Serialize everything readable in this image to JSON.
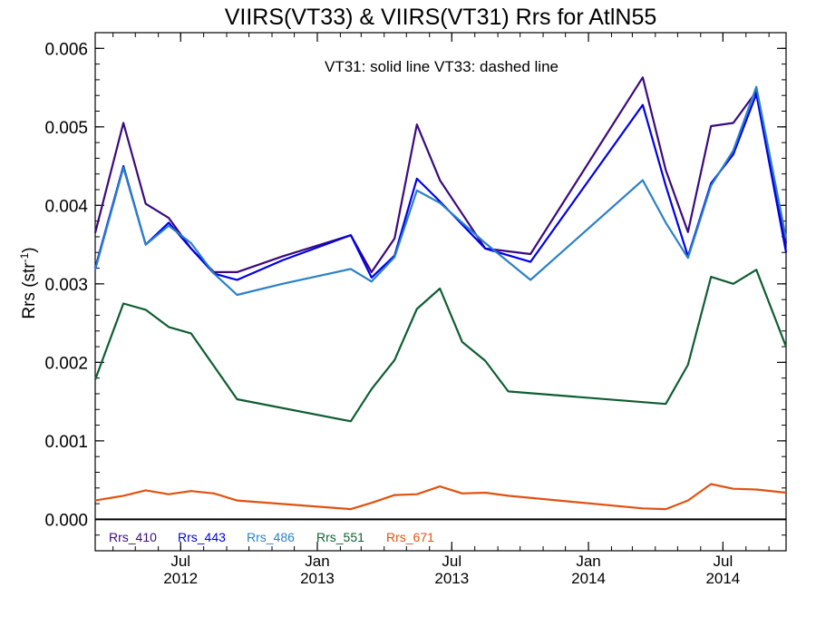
{
  "chart_data": {
    "type": "line",
    "title": "VIIRS(VT33) & VIIRS(VT31)  Rrs for AtlN55",
    "ylabel": "Rrs (str",
    "ylabel_sup": "-1",
    "ylabel_close": ")",
    "annotation": "VT31: solid line   VT33: dashed line",
    "ylim": [
      -0.0004,
      0.0062
    ],
    "xlim": [
      "2012-03-08",
      "2014-09-24"
    ],
    "yticks": [
      {
        "value": 0.0,
        "label": "0.000"
      },
      {
        "value": 0.001,
        "label": "0.001"
      },
      {
        "value": 0.002,
        "label": "0.002"
      },
      {
        "value": 0.003,
        "label": "0.003"
      },
      {
        "value": 0.004,
        "label": "0.004"
      },
      {
        "value": 0.005,
        "label": "0.005"
      },
      {
        "value": 0.006,
        "label": "0.006"
      }
    ],
    "xticks": [
      {
        "date": "2012-07-01",
        "month": "Jul",
        "year": "2012"
      },
      {
        "date": "2013-01-01",
        "month": "Jan",
        "year": "2013"
      },
      {
        "date": "2013-07-01",
        "month": "Jul",
        "year": "2013"
      },
      {
        "date": "2014-01-01",
        "month": "Jan",
        "year": "2014"
      },
      {
        "date": "2014-07-01",
        "month": "Jul",
        "year": "2014"
      }
    ],
    "zero_line": true,
    "grid": false,
    "legend_position": "bottom-left",
    "series": [
      {
        "name": "Rrs_410",
        "color": "#3a0a7e",
        "points": [
          [
            "2012-03-08",
            0.00365
          ],
          [
            "2012-04-15",
            0.00505
          ],
          [
            "2012-05-15",
            0.00402
          ],
          [
            "2012-06-15",
            0.00384
          ],
          [
            "2012-07-15",
            0.00345
          ],
          [
            "2012-08-15",
            0.00315
          ],
          [
            "2012-09-15",
            0.00315
          ],
          [
            "2012-11-15",
            0.00335
          ],
          [
            "2013-02-15",
            0.00362
          ],
          [
            "2013-03-15",
            0.00315
          ],
          [
            "2013-04-15",
            0.00358
          ],
          [
            "2013-05-15",
            0.00503
          ],
          [
            "2013-06-15",
            0.00432
          ],
          [
            "2013-08-15",
            0.00345
          ],
          [
            "2013-10-15",
            0.00338
          ],
          [
            "2014-03-15",
            0.00563
          ],
          [
            "2014-04-15",
            0.00445
          ],
          [
            "2014-05-15",
            0.00366
          ],
          [
            "2014-06-15",
            0.00501
          ],
          [
            "2014-07-15",
            0.00505
          ],
          [
            "2014-08-15",
            0.00545
          ],
          [
            "2014-09-24",
            0.00352
          ]
        ]
      },
      {
        "name": "Rrs_443",
        "color": "#0000e6",
        "points": [
          [
            "2012-03-08",
            0.0032
          ],
          [
            "2012-04-15",
            0.0045
          ],
          [
            "2012-05-15",
            0.0035
          ],
          [
            "2012-06-15",
            0.00378
          ],
          [
            "2012-07-15",
            0.00345
          ],
          [
            "2012-08-15",
            0.00313
          ],
          [
            "2012-09-15",
            0.00305
          ],
          [
            "2012-11-15",
            0.0033
          ],
          [
            "2013-02-15",
            0.00362
          ],
          [
            "2013-03-15",
            0.00308
          ],
          [
            "2013-04-15",
            0.00336
          ],
          [
            "2013-05-15",
            0.00434
          ],
          [
            "2013-06-15",
            0.00405
          ],
          [
            "2013-08-15",
            0.00345
          ],
          [
            "2013-10-15",
            0.00328
          ],
          [
            "2014-03-15",
            0.00528
          ],
          [
            "2014-04-15",
            0.00425
          ],
          [
            "2014-05-15",
            0.00335
          ],
          [
            "2014-06-15",
            0.00428
          ],
          [
            "2014-07-15",
            0.00465
          ],
          [
            "2014-08-15",
            0.00542
          ],
          [
            "2014-09-24",
            0.0034
          ]
        ]
      },
      {
        "name": "Rrs_486",
        "color": "#2a80c8",
        "points": [
          [
            "2012-03-08",
            0.00318
          ],
          [
            "2012-04-15",
            0.00448
          ],
          [
            "2012-05-15",
            0.0035
          ],
          [
            "2012-06-15",
            0.00374
          ],
          [
            "2012-07-15",
            0.00352
          ],
          [
            "2012-08-15",
            0.00313
          ],
          [
            "2012-09-15",
            0.00286
          ],
          [
            "2012-11-15",
            0.003
          ],
          [
            "2013-02-15",
            0.00319
          ],
          [
            "2013-03-15",
            0.00303
          ],
          [
            "2013-04-15",
            0.00334
          ],
          [
            "2013-05-15",
            0.00419
          ],
          [
            "2013-06-15",
            0.00403
          ],
          [
            "2013-08-15",
            0.00352
          ],
          [
            "2013-10-15",
            0.00305
          ],
          [
            "2014-03-15",
            0.00432
          ],
          [
            "2014-04-15",
            0.00378
          ],
          [
            "2014-05-15",
            0.00333
          ],
          [
            "2014-06-15",
            0.00425
          ],
          [
            "2014-07-15",
            0.0047
          ],
          [
            "2014-08-15",
            0.00551
          ],
          [
            "2014-09-24",
            0.00358
          ]
        ]
      },
      {
        "name": "Rrs_551",
        "color": "#0f5e32",
        "points": [
          [
            "2012-03-08",
            0.00178
          ],
          [
            "2012-04-15",
            0.00275
          ],
          [
            "2012-05-15",
            0.00267
          ],
          [
            "2012-06-15",
            0.00245
          ],
          [
            "2012-07-15",
            0.00237
          ],
          [
            "2012-09-15",
            0.00153
          ],
          [
            "2013-02-15",
            0.00125
          ],
          [
            "2013-03-15",
            0.00166
          ],
          [
            "2013-04-15",
            0.00203
          ],
          [
            "2013-05-15",
            0.00268
          ],
          [
            "2013-06-15",
            0.00294
          ],
          [
            "2013-07-15",
            0.00226
          ],
          [
            "2013-08-15",
            0.00202
          ],
          [
            "2013-09-15",
            0.00163
          ],
          [
            "2014-04-15",
            0.00147
          ],
          [
            "2014-05-15",
            0.00197
          ],
          [
            "2014-06-15",
            0.00309
          ],
          [
            "2014-07-15",
            0.003
          ],
          [
            "2014-08-15",
            0.00318
          ],
          [
            "2014-09-24",
            0.0022
          ]
        ]
      },
      {
        "name": "Rrs_671",
        "color": "#e0520f",
        "points": [
          [
            "2012-03-08",
            0.00024
          ],
          [
            "2012-04-15",
            0.0003
          ],
          [
            "2012-05-15",
            0.00037
          ],
          [
            "2012-06-15",
            0.00032
          ],
          [
            "2012-07-15",
            0.00036
          ],
          [
            "2012-08-15",
            0.00033
          ],
          [
            "2012-09-15",
            0.00024
          ],
          [
            "2013-02-15",
            0.00013
          ],
          [
            "2013-03-15",
            0.00021
          ],
          [
            "2013-04-15",
            0.00031
          ],
          [
            "2013-05-15",
            0.00032
          ],
          [
            "2013-06-15",
            0.00042
          ],
          [
            "2013-07-15",
            0.00033
          ],
          [
            "2013-08-15",
            0.00034
          ],
          [
            "2013-09-15",
            0.0003
          ],
          [
            "2014-03-15",
            0.00014
          ],
          [
            "2014-04-15",
            0.00013
          ],
          [
            "2014-05-15",
            0.00024
          ],
          [
            "2014-06-15",
            0.00045
          ],
          [
            "2014-07-15",
            0.00039
          ],
          [
            "2014-08-15",
            0.00038
          ],
          [
            "2014-09-24",
            0.00034
          ]
        ]
      }
    ]
  }
}
